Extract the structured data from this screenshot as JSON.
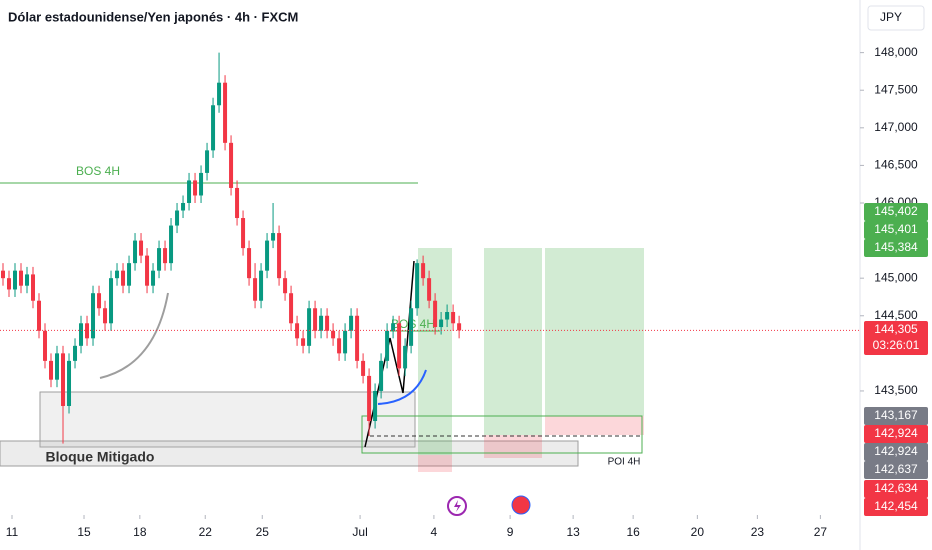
{
  "chart_data": {
    "type": "candlestick",
    "title": "Dólar estadounidense/Yen japonés · 4h · FXCM",
    "currency": "JPY",
    "up_color": "#089981",
    "down_color": "#f23645",
    "open": [
      145100,
      145000,
      144850,
      145100,
      144900,
      145050,
      144700,
      144300,
      143900,
      143650,
      144000,
      143300,
      143900,
      144100,
      144400,
      144200,
      144800,
      144600,
      144400,
      145000,
      145100,
      144900,
      145200,
      145500,
      145300,
      144900,
      145100,
      145400,
      145200,
      145700,
      145900,
      146000,
      146300,
      146100,
      146400,
      146700,
      147300,
      147600,
      146800,
      146200,
      145800,
      145400,
      145000,
      144700,
      145100,
      145500,
      145600,
      145000,
      144800,
      144400,
      144200,
      144100,
      144600,
      144300,
      144500,
      144300,
      144200,
      144000,
      144300,
      144500,
      143900,
      143700,
      143100,
      143500,
      143900,
      144300,
      144400,
      143800,
      144100,
      144600,
      145200,
      145000,
      144700,
      144350,
      144450,
      144550,
      144400
    ],
    "high": [
      145200,
      145100,
      145200,
      145200,
      145150,
      145150,
      144800,
      144400,
      144000,
      144100,
      144100,
      144000,
      144200,
      144500,
      144500,
      144900,
      144900,
      144700,
      145100,
      145200,
      145200,
      145300,
      145600,
      145600,
      145400,
      145200,
      145500,
      145500,
      145800,
      146000,
      146100,
      146400,
      146400,
      146500,
      146800,
      147400,
      148000,
      147700,
      146900,
      146300,
      145900,
      145500,
      145200,
      145200,
      145600,
      146000,
      145700,
      145100,
      144900,
      144500,
      144300,
      144700,
      144700,
      144600,
      144600,
      144400,
      144300,
      144400,
      144600,
      144600,
      144000,
      143800,
      143600,
      144000,
      144400,
      144500,
      144500,
      144200,
      144700,
      145250,
      145300,
      145100,
      144800,
      144550,
      144650,
      144650,
      144500
    ],
    "low": [
      144900,
      144750,
      144750,
      144800,
      144800,
      144600,
      144200,
      143800,
      143550,
      143550,
      142800,
      143200,
      143800,
      144000,
      144100,
      144100,
      144500,
      144300,
      144300,
      144900,
      144800,
      144800,
      145100,
      145200,
      144800,
      144800,
      145000,
      145100,
      145100,
      145600,
      145800,
      145900,
      146000,
      146000,
      146300,
      146600,
      147200,
      146700,
      146100,
      145700,
      145300,
      144900,
      144600,
      144600,
      145000,
      145400,
      144900,
      144700,
      144300,
      144100,
      144000,
      144000,
      144200,
      144200,
      144200,
      144100,
      143900,
      143900,
      144200,
      143800,
      143600,
      142900,
      143000,
      143400,
      143800,
      144200,
      143700,
      143700,
      144000,
      144500,
      144900,
      144600,
      144250,
      144250,
      144350,
      144300,
      144200
    ],
    "close": [
      145000,
      144850,
      145100,
      144900,
      145050,
      144700,
      144300,
      143900,
      143650,
      144000,
      143300,
      143900,
      144100,
      144400,
      144200,
      144800,
      144600,
      144400,
      145000,
      145100,
      144900,
      145200,
      145500,
      145300,
      144900,
      145100,
      145400,
      145200,
      145700,
      145900,
      146000,
      146300,
      146100,
      146400,
      146700,
      147300,
      147600,
      146800,
      146200,
      145800,
      145400,
      145000,
      144700,
      145100,
      145500,
      145600,
      145000,
      144800,
      144400,
      144200,
      144100,
      144600,
      144300,
      144500,
      144300,
      144200,
      144000,
      144300,
      144500,
      143900,
      143700,
      143100,
      143500,
      143900,
      144300,
      144400,
      143800,
      144100,
      144600,
      145200,
      145000,
      144700,
      144350,
      144450,
      144550,
      144400,
      144305
    ],
    "xlim": [
      -0.5,
      142.8
    ],
    "xticks": [
      {
        "value": 1.5,
        "label": "11"
      },
      {
        "value": 13.5,
        "label": "15"
      },
      {
        "value": 22.8,
        "label": "18"
      },
      {
        "value": 33.7,
        "label": "22"
      },
      {
        "value": 43.2,
        "label": "25"
      },
      {
        "value": 59.5,
        "label": "Jul"
      },
      {
        "value": 71.8,
        "label": "4"
      },
      {
        "value": 84.5,
        "label": "9"
      },
      {
        "value": 95,
        "label": "13"
      },
      {
        "value": 105,
        "label": "16"
      },
      {
        "value": 115.7,
        "label": "20"
      },
      {
        "value": 125.7,
        "label": "23"
      },
      {
        "value": 136.2,
        "label": "27"
      }
    ],
    "ylim": [
      141850,
      148700
    ],
    "yticks": [
      {
        "value": 143500,
        "label": "143,500"
      },
      {
        "value": 144500,
        "label": "144,500"
      },
      {
        "value": 145000,
        "label": "145,000"
      },
      {
        "value": 146000,
        "label": "146,000"
      },
      {
        "value": 146500,
        "label": "146,500"
      },
      {
        "value": 147000,
        "label": "147,000"
      },
      {
        "value": 147500,
        "label": "147,500"
      },
      {
        "value": 148000,
        "label": "148,000"
      }
    ],
    "grid": false,
    "price_tags": [
      {
        "value": 145402,
        "label": "145,402",
        "color": "#4caf50"
      },
      {
        "value": 145401,
        "label": "145,401",
        "color": "#4caf50"
      },
      {
        "value": 145384,
        "label": "145,384",
        "color": "#4caf50"
      },
      {
        "value": 144305,
        "label": "144,305",
        "color": "#f23645"
      },
      {
        "value": 143167,
        "label": "143,167",
        "color": "#787b86"
      },
      {
        "value": 142924,
        "label": "142,924",
        "color": "#f23645"
      },
      {
        "value": 142924,
        "label": "142,924",
        "color": "#787b86"
      },
      {
        "value": 142637,
        "label": "142,637",
        "color": "#787b86"
      },
      {
        "value": 142634,
        "label": "142,634",
        "color": "#f23645"
      },
      {
        "value": 142454,
        "label": "142,454",
        "color": "#f23645"
      }
    ],
    "countdown": "03:26:01",
    "annotations": [
      "BOS 4H",
      "BOS 4H",
      "Bloque Mitigado",
      "POI 4H"
    ]
  }
}
